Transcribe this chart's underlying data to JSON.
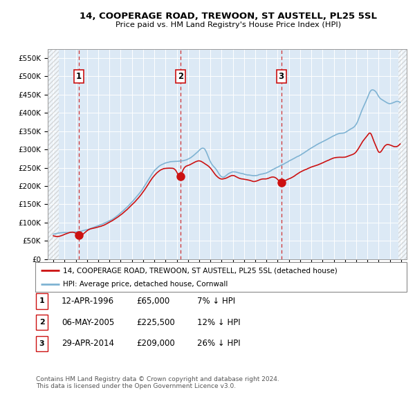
{
  "title": "14, COOPERAGE ROAD, TREWOON, ST AUSTELL, PL25 5SL",
  "subtitle": "Price paid vs. HM Land Registry's House Price Index (HPI)",
  "xlim": [
    1993.5,
    2025.5
  ],
  "ylim": [
    0,
    575000
  ],
  "yticks": [
    0,
    50000,
    100000,
    150000,
    200000,
    250000,
    300000,
    350000,
    400000,
    450000,
    500000,
    550000
  ],
  "ytick_labels": [
    "£0",
    "£50K",
    "£100K",
    "£150K",
    "£200K",
    "£250K",
    "£300K",
    "£350K",
    "£400K",
    "£450K",
    "£500K",
    "£550K"
  ],
  "xticks": [
    1994,
    1995,
    1996,
    1997,
    1998,
    1999,
    2000,
    2001,
    2002,
    2003,
    2004,
    2005,
    2006,
    2007,
    2008,
    2009,
    2010,
    2011,
    2012,
    2013,
    2014,
    2015,
    2016,
    2017,
    2018,
    2019,
    2020,
    2021,
    2022,
    2023,
    2024,
    2025
  ],
  "sale_dates": [
    1996.28,
    2005.35,
    2014.32
  ],
  "sale_prices": [
    65000,
    225500,
    209000
  ],
  "sale_labels": [
    "1",
    "2",
    "3"
  ],
  "hpi_color": "#7fb3d3",
  "price_color": "#cc1111",
  "dashed_color": "#cc1111",
  "background_color": "#dce9f5",
  "legend_label_price": "14, COOPERAGE ROAD, TREWOON, ST AUSTELL, PL25 5SL (detached house)",
  "legend_label_hpi": "HPI: Average price, detached house, Cornwall",
  "table_entries": [
    {
      "num": "1",
      "date": "12-APR-1996",
      "price": "£65,000",
      "hpi": "7% ↓ HPI"
    },
    {
      "num": "2",
      "date": "06-MAY-2005",
      "price": "£225,500",
      "hpi": "12% ↓ HPI"
    },
    {
      "num": "3",
      "date": "29-APR-2014",
      "price": "£209,000",
      "hpi": "26% ↓ HPI"
    }
  ],
  "footer": "Contains HM Land Registry data © Crown copyright and database right 2024.\nThis data is licensed under the Open Government Licence v3.0."
}
